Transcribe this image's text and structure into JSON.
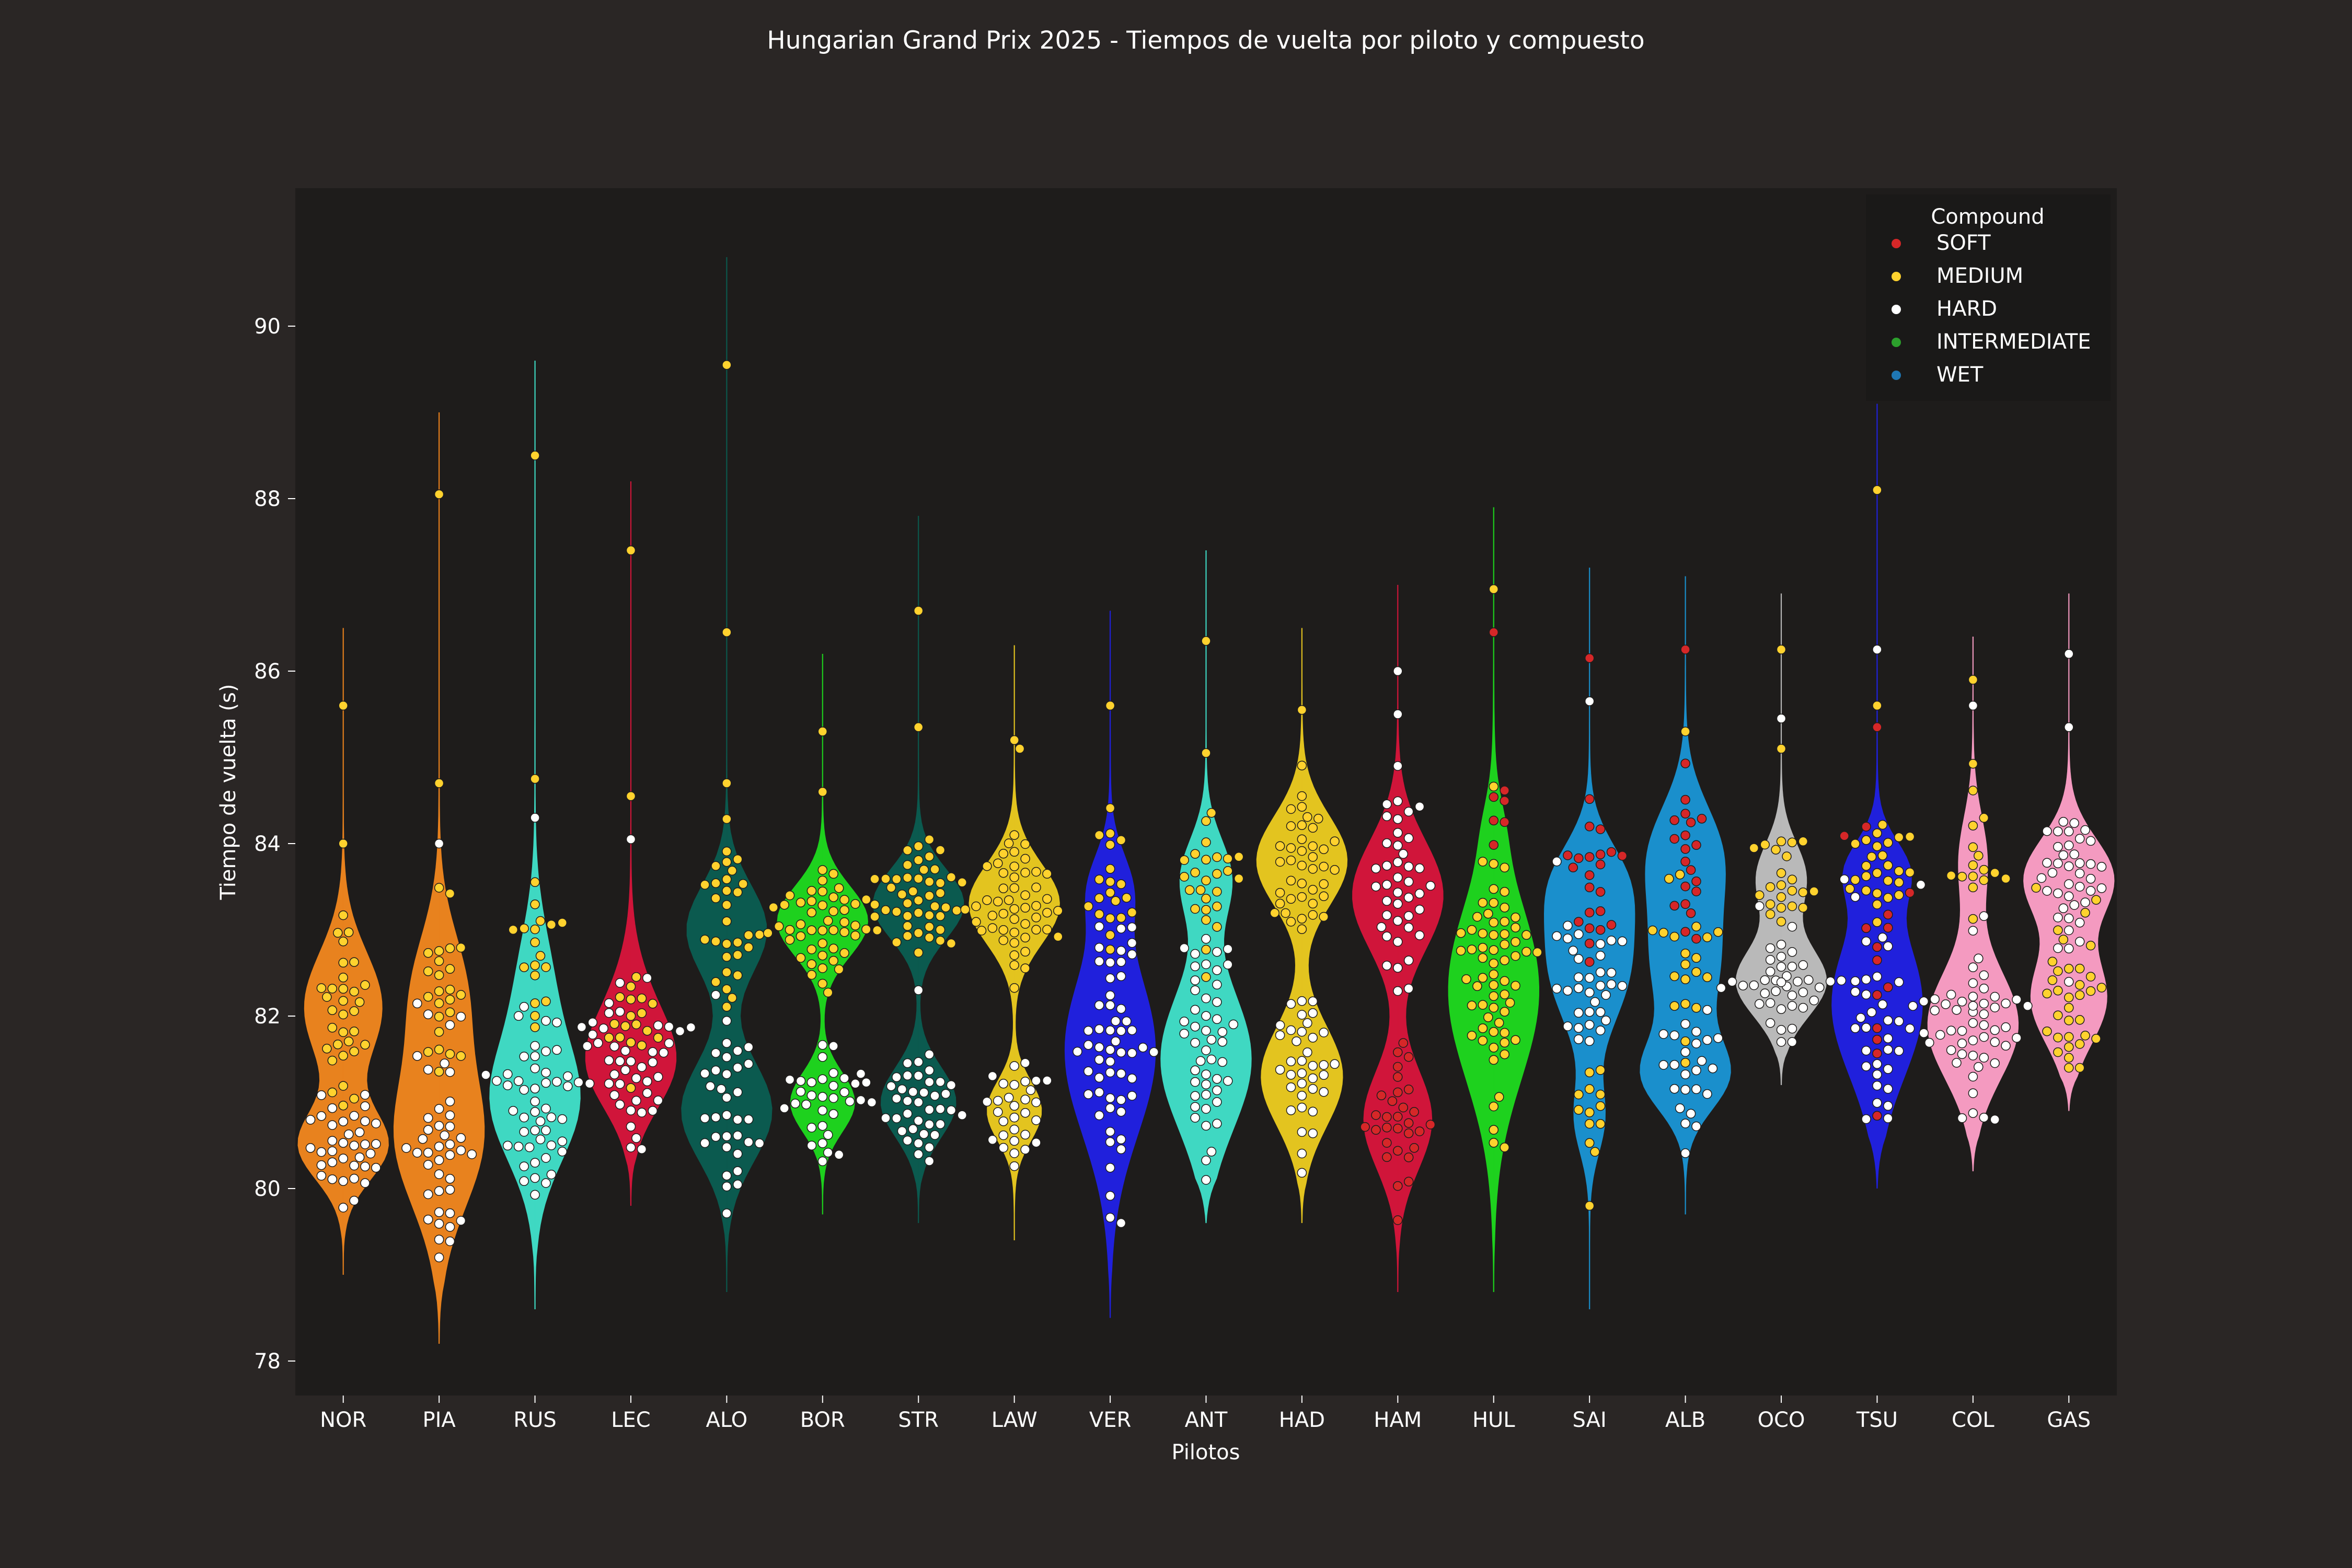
{
  "chart_data": {
    "type": "violin",
    "title": "Hungarian Grand Prix 2025 - Tiempos de vuelta por piloto y compuesto",
    "xlabel": "Pilotos",
    "ylabel": "Tiempo de vuelta (s)",
    "ylim": [
      77.6,
      91.6
    ],
    "yticks": [
      78,
      80,
      82,
      84,
      86,
      88,
      90
    ],
    "grid": false,
    "legend": {
      "title": "Compound",
      "placement": "top-right",
      "entries": [
        {
          "label": "SOFT",
          "color": "#d62728"
        },
        {
          "label": "MEDIUM",
          "color": "#ffd22e"
        },
        {
          "label": "HARD",
          "color": "#ffffff"
        },
        {
          "label": "INTERMEDIATE",
          "color": "#2ca02c"
        },
        {
          "label": "WET",
          "color": "#1f77b4"
        }
      ]
    },
    "series": [
      {
        "driver": "NOR",
        "color": "#e8821e",
        "min": 79.0,
        "max": 86.5,
        "groups": [
          {
            "compound": "MEDIUM",
            "center": 82.1,
            "spread": 0.55,
            "count": 32
          },
          {
            "compound": "HARD",
            "center": 80.5,
            "spread": 0.35,
            "count": 36
          }
        ],
        "outliers": [
          {
            "compound": "MEDIUM",
            "y": 85.6
          },
          {
            "compound": "MEDIUM",
            "y": 84.0
          }
        ]
      },
      {
        "driver": "PIA",
        "color": "#e8821e",
        "min": 78.2,
        "max": 89.0,
        "groups": [
          {
            "compound": "MEDIUM",
            "center": 82.3,
            "spread": 0.6,
            "count": 24
          },
          {
            "compound": "HARD",
            "center": 80.6,
            "spread": 0.7,
            "count": 42
          }
        ],
        "outliers": [
          {
            "compound": "MEDIUM",
            "y": 88.05
          },
          {
            "compound": "MEDIUM",
            "y": 84.7
          },
          {
            "compound": "HARD",
            "y": 84.0
          }
        ]
      },
      {
        "driver": "RUS",
        "color": "#3fd8c2",
        "min": 78.6,
        "max": 89.6,
        "groups": [
          {
            "compound": "MEDIUM",
            "center": 82.4,
            "spread": 0.6,
            "count": 18
          },
          {
            "compound": "HARD",
            "center": 81.0,
            "spread": 0.6,
            "count": 50
          }
        ],
        "outliers": [
          {
            "compound": "MEDIUM",
            "y": 88.5
          },
          {
            "compound": "MEDIUM",
            "y": 84.75
          },
          {
            "compound": "HARD",
            "y": 84.3
          }
        ]
      },
      {
        "driver": "LEC",
        "color": "#d0153a",
        "min": 79.8,
        "max": 88.2,
        "groups": [
          {
            "compound": "MEDIUM",
            "center": 82.1,
            "spread": 0.5,
            "count": 18
          },
          {
            "compound": "HARD",
            "center": 81.4,
            "spread": 0.45,
            "count": 44
          }
        ],
        "outliers": [
          {
            "compound": "MEDIUM",
            "y": 87.4
          },
          {
            "compound": "MEDIUM",
            "y": 84.55
          },
          {
            "compound": "HARD",
            "y": 84.05
          }
        ]
      },
      {
        "driver": "ALO",
        "color": "#0b5a4f",
        "min": 78.8,
        "max": 90.8,
        "groups": [
          {
            "compound": "MEDIUM",
            "center": 83.0,
            "spread": 0.45,
            "count": 30
          },
          {
            "compound": "HARD",
            "center": 80.9,
            "spread": 0.5,
            "count": 34
          }
        ],
        "outliers": [
          {
            "compound": "MEDIUM",
            "y": 89.55
          },
          {
            "compound": "MEDIUM",
            "y": 86.45
          },
          {
            "compound": "MEDIUM",
            "y": 84.7
          }
        ]
      },
      {
        "driver": "BOR",
        "color": "#1ed11e",
        "min": 79.7,
        "max": 86.2,
        "groups": [
          {
            "compound": "MEDIUM",
            "center": 83.1,
            "spread": 0.35,
            "count": 48
          },
          {
            "compound": "HARD",
            "center": 81.0,
            "spread": 0.3,
            "count": 34
          }
        ],
        "outliers": [
          {
            "compound": "MEDIUM",
            "y": 85.3
          },
          {
            "compound": "MEDIUM",
            "y": 84.6
          }
        ]
      },
      {
        "driver": "STR",
        "color": "#0b5a4f",
        "min": 79.6,
        "max": 87.8,
        "groups": [
          {
            "compound": "MEDIUM",
            "center": 83.3,
            "spread": 0.35,
            "count": 46
          },
          {
            "compound": "HARD",
            "center": 81.0,
            "spread": 0.35,
            "count": 38
          }
        ],
        "outliers": [
          {
            "compound": "MEDIUM",
            "y": 86.7
          },
          {
            "compound": "MEDIUM",
            "y": 85.35
          },
          {
            "compound": "HARD",
            "y": 82.3
          }
        ]
      },
      {
        "driver": "LAW",
        "color": "#e3c41f",
        "min": 79.4,
        "max": 86.3,
        "groups": [
          {
            "compound": "MEDIUM",
            "center": 83.3,
            "spread": 0.4,
            "count": 50
          },
          {
            "compound": "HARD",
            "center": 80.9,
            "spread": 0.3,
            "count": 30
          }
        ],
        "outliers": [
          {
            "compound": "MEDIUM",
            "y": 85.2
          },
          {
            "compound": "MEDIUM",
            "y": 85.1
          }
        ]
      },
      {
        "driver": "VER",
        "color": "#2020dc",
        "min": 78.5,
        "max": 86.7,
        "groups": [
          {
            "compound": "MEDIUM",
            "center": 83.5,
            "spread": 0.35,
            "count": 20
          },
          {
            "compound": "HARD",
            "center": 81.6,
            "spread": 0.85,
            "count": 54
          }
        ],
        "outliers": [
          {
            "compound": "MEDIUM",
            "y": 85.6
          },
          {
            "compound": "HARD",
            "y": 79.6
          }
        ]
      },
      {
        "driver": "ANT",
        "color": "#3fd8c2",
        "min": 79.6,
        "max": 87.4,
        "groups": [
          {
            "compound": "MEDIUM",
            "center": 83.6,
            "spread": 0.4,
            "count": 26
          },
          {
            "compound": "HARD",
            "center": 81.5,
            "spread": 0.7,
            "count": 48
          }
        ],
        "outliers": [
          {
            "compound": "MEDIUM",
            "y": 86.35
          },
          {
            "compound": "MEDIUM",
            "y": 85.05
          }
        ]
      },
      {
        "driver": "HAD",
        "color": "#e3c41f",
        "min": 79.6,
        "max": 86.5,
        "groups": [
          {
            "compound": "MEDIUM",
            "center": 83.8,
            "spread": 0.45,
            "count": 40
          },
          {
            "compound": "HARD",
            "center": 81.3,
            "spread": 0.5,
            "count": 36
          }
        ],
        "outliers": [
          {
            "compound": "MEDIUM",
            "y": 85.55
          }
        ]
      },
      {
        "driver": "HAM",
        "color": "#d0153a",
        "min": 78.8,
        "max": 87.0,
        "groups": [
          {
            "compound": "HARD",
            "center": 83.4,
            "spread": 0.55,
            "count": 40
          },
          {
            "compound": "SOFT",
            "center": 80.8,
            "spread": 0.5,
            "count": 30
          }
        ],
        "outliers": [
          {
            "compound": "HARD",
            "y": 86.0
          },
          {
            "compound": "HARD",
            "y": 85.5
          },
          {
            "compound": "HARD",
            "y": 84.9
          }
        ]
      },
      {
        "driver": "HUL",
        "color": "#1ed11e",
        "min": 78.8,
        "max": 87.9,
        "groups": [
          {
            "compound": "MEDIUM",
            "center": 82.3,
            "spread": 0.9,
            "count": 64
          },
          {
            "compound": "SOFT",
            "center": 84.2,
            "spread": 0.3,
            "count": 6
          }
        ],
        "outliers": [
          {
            "compound": "MEDIUM",
            "y": 86.95
          },
          {
            "compound": "SOFT",
            "y": 86.45
          }
        ]
      },
      {
        "driver": "SAI",
        "color": "#1a8fcc",
        "min": 78.6,
        "max": 87.2,
        "groups": [
          {
            "compound": "SOFT",
            "center": 83.6,
            "spread": 0.4,
            "count": 22
          },
          {
            "compound": "HARD",
            "center": 82.6,
            "spread": 0.6,
            "count": 34
          },
          {
            "compound": "MEDIUM",
            "center": 80.8,
            "spread": 0.35,
            "count": 12
          }
        ],
        "outliers": [
          {
            "compound": "SOFT",
            "y": 86.15
          },
          {
            "compound": "HARD",
            "y": 85.65
          },
          {
            "compound": "MEDIUM",
            "y": 79.8
          }
        ]
      },
      {
        "driver": "ALB",
        "color": "#1a8fcc",
        "min": 79.7,
        "max": 87.1,
        "groups": [
          {
            "compound": "SOFT",
            "center": 83.9,
            "spread": 0.5,
            "count": 20
          },
          {
            "compound": "MEDIUM",
            "center": 82.6,
            "spread": 0.6,
            "count": 20
          },
          {
            "compound": "HARD",
            "center": 81.3,
            "spread": 0.35,
            "count": 24
          }
        ],
        "outliers": [
          {
            "compound": "SOFT",
            "y": 86.25
          },
          {
            "compound": "MEDIUM",
            "y": 85.3
          }
        ]
      },
      {
        "driver": "OCO",
        "color": "#b9b9b9",
        "min": 81.2,
        "max": 86.9,
        "groups": [
          {
            "compound": "MEDIUM",
            "center": 83.6,
            "spread": 0.35,
            "count": 22
          },
          {
            "compound": "HARD",
            "center": 82.4,
            "spread": 0.35,
            "count": 40
          }
        ],
        "outliers": [
          {
            "compound": "MEDIUM",
            "y": 86.25
          },
          {
            "compound": "HARD",
            "y": 85.45
          },
          {
            "compound": "MEDIUM",
            "y": 85.1
          }
        ]
      },
      {
        "driver": "TSU",
        "color": "#2020dc",
        "min": 80.0,
        "max": 89.1,
        "groups": [
          {
            "compound": "MEDIUM",
            "center": 83.7,
            "spread": 0.3,
            "count": 26
          },
          {
            "compound": "SOFT",
            "center": 82.5,
            "spread": 0.7,
            "count": 14
          },
          {
            "compound": "HARD",
            "center": 82.0,
            "spread": 0.7,
            "count": 34
          }
        ],
        "outliers": [
          {
            "compound": "MEDIUM",
            "y": 88.1
          },
          {
            "compound": "HARD",
            "y": 86.25
          },
          {
            "compound": "MEDIUM",
            "y": 85.6
          },
          {
            "compound": "SOFT",
            "y": 85.35
          }
        ]
      },
      {
        "driver": "COL",
        "color": "#f49ac0",
        "min": 80.2,
        "max": 86.4,
        "groups": [
          {
            "compound": "MEDIUM",
            "center": 83.8,
            "spread": 0.45,
            "count": 16
          },
          {
            "compound": "HARD",
            "center": 81.9,
            "spread": 0.55,
            "count": 52
          }
        ],
        "outliers": [
          {
            "compound": "MEDIUM",
            "y": 85.9
          },
          {
            "compound": "HARD",
            "y": 85.6
          },
          {
            "compound": "HARD",
            "y": 80.8
          }
        ]
      },
      {
        "driver": "GAS",
        "color": "#f49ac0",
        "min": 80.9,
        "max": 86.9,
        "groups": [
          {
            "compound": "HARD",
            "center": 83.6,
            "spread": 0.4,
            "count": 40
          },
          {
            "compound": "MEDIUM",
            "center": 82.2,
            "spread": 0.45,
            "count": 34
          }
        ],
        "outliers": [
          {
            "compound": "HARD",
            "y": 86.2
          },
          {
            "compound": "HARD",
            "y": 85.35
          }
        ]
      }
    ]
  }
}
